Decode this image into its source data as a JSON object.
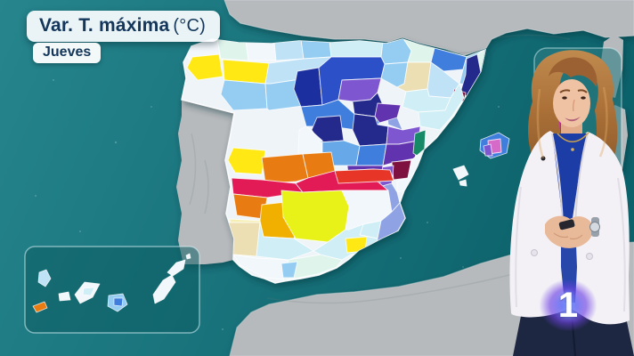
{
  "header": {
    "title_main": "Var. T. máxima",
    "title_unit": "(°C)",
    "day": "Jueves"
  },
  "channel": {
    "logo_text": "1"
  },
  "colors": {
    "sea_left": "#26858d",
    "sea_right": "#0c626b",
    "land": "#b6babd",
    "land_dark": "#a7adb0",
    "spain_base": "#eef4f8",
    "inset_fill": "rgba(13,92,99,0.55)",
    "inset_border": "rgba(215,240,245,0.55)",
    "legend_fill": "rgba(45,125,130,0.6)",
    "legend_border": "rgba(205,238,242,0.5)",
    "title_text": "#14365a"
  },
  "legend": {
    "swatches": [
      "#8e1041",
      "#b81da8",
      "#cc2cb8",
      "#d94fc6"
    ]
  },
  "map": {
    "palette": {
      "w": "#f2f7fb",
      "mint": "#dff5ec",
      "cy": "#cfeef5",
      "pb": "#bfe2f7",
      "lb": "#95cdf2",
      "sb": "#66a8e8",
      "mb": "#3f7edd",
      "rb": "#2b50c8",
      "nb": "#1b2f9e",
      "in": "#232a8c",
      "pw": "#8fa3e4",
      "vi": "#7e57d0",
      "pu": "#6233ae",
      "gn": "#168a67",
      "mr": "#7e1140",
      "cr": "#e21a55",
      "rd": "#e73527",
      "or": "#e87c12",
      "am": "#f1b000",
      "ye": "#ffe814",
      "ch": "#e9f218",
      "cm": "#ecdfb4",
      "py": "#f5eeb5",
      "pk": "#d66ac8"
    },
    "spain": "215,52 238,44 268,48 305,49 336,46 372,48 404,46 434,49 452,44 470,50 498,57 524,64 545,56 540,80 528,100 510,130 490,155 476,168 469,186 461,202 454,214 449,228 455,245 447,259 428,268 413,276 403,281 392,291 378,301 358,309 338,313 319,316 309,318 297,313 283,309 269,299 262,292 263,268 254,240 259,210 253,180 259,150 263,127 204,112 209,88 206,70",
    "portugal": "204,112 263,127 259,150 253,180 259,210 254,240 263,268 262,292 250,295 230,297 206,297 200,270 204,240 198,210 204,180 200,150 204,130",
    "france": "252,0 258,16 270,26 300,33 340,40 376,44 410,44 436,47 452,42 470,48 500,55 522,62 546,54 552,44 568,37 592,32 622,38 655,34 680,42 712,40 712,0",
    "africa": "258,400 266,368 282,351 302,342 322,338 356,331 398,328 448,322 498,311 540,296 582,284 624,279 664,276 712,272 712,400",
    "corsica": "678,47 690,39 700,45 699,78 691,110 679,106 674,76",
    "sardinia": "676,126 691,118 702,123 705,152 699,190 687,211 676,196 671,158",
    "regions": [
      {
        "c": "w",
        "p": "208,60 213,48 244,44 248,66 240,76 218,74"
      },
      {
        "c": "mint",
        "p": "244,44 276,46 279,68 248,66"
      },
      {
        "c": "w",
        "p": "276,46 308,47 310,68 279,68"
      },
      {
        "c": "pb",
        "p": "308,47 338,44 341,66 310,68"
      },
      {
        "c": "lb",
        "p": "338,44 370,46 372,64 341,66"
      },
      {
        "c": "cy",
        "p": "370,46 402,44 430,47 428,64 372,64"
      },
      {
        "c": "lb",
        "p": "428,64 430,47 452,42 462,57 458,70 432,72"
      },
      {
        "c": "mint",
        "p": "458,70 462,57 452,42 470,48 488,54 484,70"
      },
      {
        "c": "mb",
        "p": "484,70 488,54 510,60 524,64 520,78 498,80"
      },
      {
        "c": "lb",
        "p": "520,78 524,64 546,55 541,78 532,96 516,94"
      },
      {
        "c": "ye",
        "p": "210,76 216,64 246,61 250,86 222,90"
      },
      {
        "c": "ye",
        "p": "250,67 302,71 298,94 252,90"
      },
      {
        "c": "pb",
        "p": "302,71 341,66 372,64 370,80 344,88 304,94 298,94"
      },
      {
        "c": "lb",
        "p": "248,106 252,90 298,94 300,122 262,124"
      },
      {
        "c": "lb",
        "p": "300,122 298,94 304,94 344,88 348,118 302,124"
      },
      {
        "c": "nb",
        "p": "330,100 334,80 358,76 362,118 338,120"
      },
      {
        "c": "rb",
        "p": "358,76 372,64 428,64 432,72 428,88 384,90 380,112 362,118"
      },
      {
        "c": "vi",
        "p": "384,90 428,88 424,104 416,112 396,114 380,112"
      },
      {
        "c": "in",
        "p": "396,114 416,112 424,104 430,118 421,131 398,128"
      },
      {
        "c": "lb",
        "p": "428,88 432,72 458,70 454,94 446,98"
      },
      {
        "c": "cm",
        "p": "446,98 454,94 458,70 484,70 480,100 456,103"
      },
      {
        "c": "pb",
        "p": "480,100 484,70 498,80 516,94 506,110 482,108"
      },
      {
        "c": "cy",
        "p": "452,120 456,103 480,100 482,108 506,110 500,124 470,126"
      },
      {
        "c": "in",
        "p": "524,66 536,61 546,55 541,78 536,100 527,110 517,104 523,84"
      },
      {
        "c": "mint",
        "p": "536,61 546,55 549,70 540,82"
      },
      {
        "c": "mr",
        "p": "510,100 523,104 521,114 508,110"
      },
      {
        "c": "cy",
        "p": "470,126 500,124 506,110 516,94 521,110 508,130 494,146 472,142"
      },
      {
        "c": "pw",
        "p": "434,120 450,118 446,132 452,146 436,140"
      },
      {
        "c": "pu",
        "p": "421,131 424,116 450,118 446,132 426,138"
      },
      {
        "c": "mb",
        "p": "338,120 362,118 380,112 398,128 421,131 426,138 424,140 400,146 372,142 344,142"
      },
      {
        "c": "in",
        "p": "350,146 356,132 382,130 386,158 360,160"
      },
      {
        "c": "in",
        "p": "398,128 421,131 424,140 436,142 434,162 404,164 396,146"
      },
      {
        "c": "w",
        "p": "336,146 344,142 362,158 358,200 334,196"
      },
      {
        "c": "sb",
        "p": "362,158 358,160 386,158 404,164 400,186 362,186"
      },
      {
        "c": "mb",
        "p": "404,164 434,162 430,186 400,186"
      },
      {
        "c": "vi",
        "p": "436,142 452,146 472,142 470,158 448,162 434,162"
      },
      {
        "c": "pu",
        "p": "434,162 448,162 470,158 466,178 444,182 430,186"
      },
      {
        "c": "gn",
        "p": "466,150 478,146 476,180 464,172"
      },
      {
        "c": "mr",
        "p": "440,182 462,180 458,200 442,202"
      },
      {
        "c": "vi",
        "p": "428,188 442,186 440,206 426,210"
      },
      {
        "c": "w",
        "p": "462,180 476,168 469,186 461,202 454,214 446,216 446,204 458,200"
      },
      {
        "c": "pu",
        "p": "390,186 430,186 426,210 414,214 392,208"
      },
      {
        "c": "pw",
        "p": "414,214 426,210 440,206 446,216 449,228 440,238 422,236 412,224"
      },
      {
        "c": "lb",
        "p": "392,208 414,214 412,224 408,238 390,236 386,218"
      },
      {
        "c": "ye",
        "p": "256,180 262,166 298,169 294,196 264,194"
      },
      {
        "c": "or",
        "p": "294,177 340,173 346,200 332,204 298,206"
      },
      {
        "c": "or",
        "p": "340,173 372,171 376,192 346,200"
      },
      {
        "c": "cr",
        "p": "260,200 294,202 332,206 340,216 300,222 262,218"
      },
      {
        "c": "cr",
        "p": "332,206 346,200 376,192 420,190 424,204 436,214 384,214 340,216"
      },
      {
        "c": "rd",
        "p": "376,192 420,190 438,191 442,203 424,204 380,206"
      },
      {
        "c": "or",
        "p": "262,218 300,222 296,246 266,242"
      },
      {
        "c": "py",
        "p": "258,246 294,248 290,268 260,264"
      },
      {
        "c": "am",
        "p": "292,248 294,230 330,226 336,252 330,268 296,266"
      },
      {
        "c": "ch",
        "p": "316,214 340,216 384,214 392,232 388,258 368,272 332,268 318,244"
      },
      {
        "c": "w",
        "p": "384,214 436,214 440,238 428,248 408,252 392,258 388,258 392,232"
      },
      {
        "c": "cy",
        "p": "408,252 428,248 424,268 404,264"
      },
      {
        "c": "cm",
        "p": "254,268 256,250 292,250 288,288 262,286"
      },
      {
        "c": "w",
        "p": "262,286 288,290 324,292 318,314 298,312 270,298"
      },
      {
        "c": "mint",
        "p": "324,292 360,286 384,292 378,300 356,308 336,312 318,314"
      },
      {
        "c": "cy",
        "p": "288,288 292,250 296,266 330,268 352,282 324,292"
      },
      {
        "c": "cy",
        "p": "352,282 368,272 388,258 392,258 408,252 404,264 424,268 420,282 394,286 384,292 360,286"
      },
      {
        "c": "ye",
        "p": "388,268 412,266 410,282 390,284"
      },
      {
        "c": "lb",
        "p": "410,282 428,278 424,294 408,294"
      },
      {
        "c": "lb",
        "p": "316,296 334,294 330,312 318,312"
      },
      {
        "c": "pw",
        "p": "424,268 428,248 440,238 449,228 455,245 447,259 434,268 422,282"
      }
    ],
    "balearics": [
      {
        "c": "mb",
        "p": "539,169 540,157 560,149 572,156 569,172 551,178"
      },
      {
        "c": "pk",
        "p": "548,158 562,156 563,171 549,173"
      },
      {
        "c": "vi",
        "p": "543,164 551,162 553,175 545,175"
      },
      {
        "c": "w",
        "p": "509,190 521,186 526,196 515,202"
      },
      {
        "c": "w",
        "p": "516,204 523,202 524,209 517,208"
      }
    ],
    "canary_islands": [
      {
        "c": "pb",
        "p": "44,306 52,303 57,313 51,322 43,317"
      },
      {
        "c": "or",
        "p": "37,344 50,339 53,346 41,351"
      },
      {
        "c": "w",
        "p": "66,330 77,328 79,337 67,338"
      },
      {
        "c": "w",
        "p": "84,331 95,317 112,319 104,334 90,341"
      },
      {
        "c": "cy",
        "p": "94,324 106,323 102,332 93,331"
      },
      {
        "c": "lb",
        "p": "122,332 138,330 143,342 132,350 121,344"
      },
      {
        "c": "mb",
        "p": "128,335 138,335 137,344 128,343"
      },
      {
        "c": "w",
        "p": "172,331 183,315 193,309 197,317 184,336 174,341"
      },
      {
        "c": "w",
        "p": "188,306 198,295 208,292 206,302 194,310"
      },
      {
        "c": "w",
        "p": "209,287 213,285 214,290 210,291"
      }
    ]
  }
}
